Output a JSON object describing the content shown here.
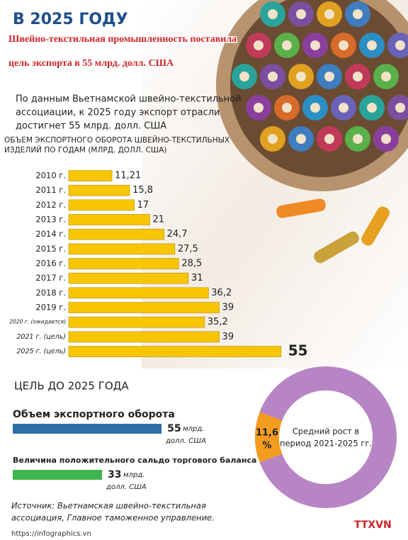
{
  "header": {
    "title": "В 2025 ГОДУ",
    "subtitle": [
      "Швейно-текстильная промышленность поставила",
      "цель экспорта в 55 млрд. долл. США"
    ]
  },
  "intro": [
    "По данным Вьетнамской швейно-текстильной",
    "ассоциации, к 2025 году экспорт отрасли",
    "достигнет 55 млрд. долл. США"
  ],
  "chart_data": {
    "type": "bar",
    "orientation": "horizontal",
    "title": [
      "ОБЪЕМ ЭКСПОРТНОГО ОБОРОТА ШВЕЙНО-ТЕКСТИЛЬНЫХ",
      "ИЗДЕЛИЙ ПО ГОДАМ (МЛРД. ДОЛЛ. США)"
    ],
    "categories": [
      "2010 г.",
      "2011 г.",
      "2012 г.",
      "2013 г.",
      "2014 г.",
      "2015 г.",
      "2016 г.",
      "2017 г.",
      "2018 г.",
      "2019 г.",
      "2020 г. (ожидается)",
      "2021 г. (цель)",
      "2025 г. (цель)"
    ],
    "values": [
      11.21,
      15.8,
      17,
      21,
      24.7,
      27.5,
      28.5,
      31,
      36.2,
      39,
      35.2,
      39,
      55
    ],
    "value_labels": [
      "11,21",
      "15,8",
      "17",
      "21",
      "24,7",
      "27,5",
      "28,5",
      "31",
      "36,2",
      "39",
      "35,2",
      "39",
      "55"
    ],
    "color": "#f7c600"
  },
  "goal": {
    "heading": "ЦЕЛЬ ДО 2025 ГОДА",
    "items": [
      {
        "label": "Объем экспортного оборота",
        "value": 55,
        "unit": [
          "млрд.",
          "долл. США"
        ],
        "color": "#2f6ea6"
      },
      {
        "label": "Величина положительного сальдо торгового баланса",
        "value": 33,
        "unit": [
          "млрд.",
          "долл. США"
        ],
        "color": "#3fb54f"
      }
    ]
  },
  "growth": {
    "value": 11.6,
    "value_label": [
      "11,6",
      "%"
    ],
    "label": [
      "Средний рост в",
      "период 2021-2025 гг."
    ],
    "color": "#f39c1f",
    "ring_color": "#b784c4"
  },
  "source": [
    "Источник: Вьетнамская швейно-текстильная",
    "ассоциация, Главное таможенное управление."
  ],
  "footer": {
    "site": "https://infographics.vn",
    "logo": "TTXVN"
  }
}
